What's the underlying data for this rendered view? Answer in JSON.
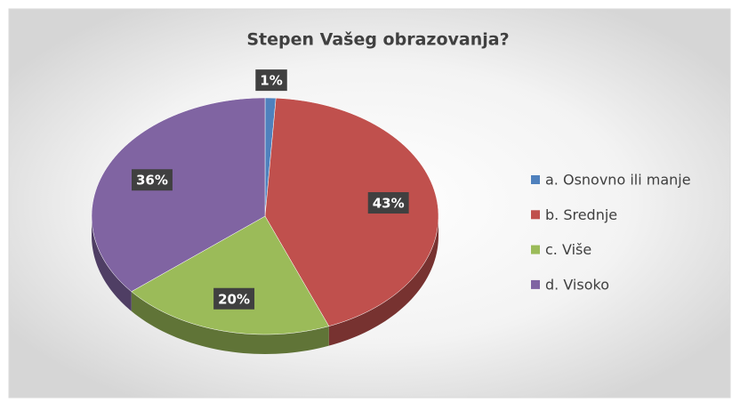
{
  "chart_data": {
    "type": "pie3d",
    "title": "Stepen Vašeg obrazovanja?",
    "categories": [
      "a. Osnovno ili manje",
      "b. Srednje",
      "c. Više",
      "d. Visoko"
    ],
    "values": [
      1,
      43,
      20,
      36
    ],
    "value_labels": [
      "1%",
      "43%",
      "20%",
      "36%"
    ],
    "colors": [
      "#4f81bd",
      "#c0504d",
      "#9bbb59",
      "#8064a2"
    ],
    "legend": "right"
  }
}
